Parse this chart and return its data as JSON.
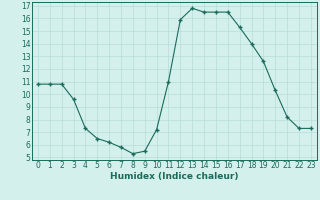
{
  "x": [
    0,
    1,
    2,
    3,
    4,
    5,
    6,
    7,
    8,
    9,
    10,
    11,
    12,
    13,
    14,
    15,
    16,
    17,
    18,
    19,
    20,
    21,
    22,
    23
  ],
  "y": [
    10.8,
    10.8,
    10.8,
    9.6,
    7.3,
    6.5,
    6.2,
    5.8,
    5.3,
    5.5,
    7.2,
    11.0,
    15.9,
    16.8,
    16.5,
    16.5,
    16.5,
    15.3,
    14.0,
    12.6,
    10.3,
    8.2,
    7.3,
    7.3
  ],
  "ylim": [
    4.8,
    17.3
  ],
  "xlim": [
    -0.5,
    23.5
  ],
  "yticks": [
    5,
    6,
    7,
    8,
    9,
    10,
    11,
    12,
    13,
    14,
    15,
    16,
    17
  ],
  "xticks": [
    0,
    1,
    2,
    3,
    4,
    5,
    6,
    7,
    8,
    9,
    10,
    11,
    12,
    13,
    14,
    15,
    16,
    17,
    18,
    19,
    20,
    21,
    22,
    23
  ],
  "xlabel": "Humidex (Indice chaleur)",
  "line_color": "#1a6b5a",
  "marker": "+",
  "marker_size": 3.5,
  "marker_lw": 1.0,
  "line_width": 0.8,
  "bg_color": "#d4f0ec",
  "grid_color": "#b8ddd8",
  "xlabel_fontsize": 6.5,
  "tick_fontsize": 5.5
}
